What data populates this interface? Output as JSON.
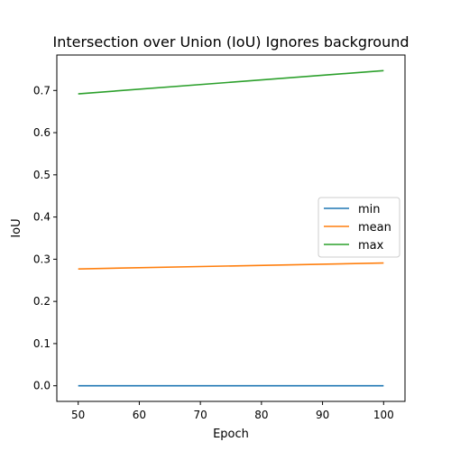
{
  "chart_data": {
    "type": "line",
    "title": "Intersection over Union (IoU) Ignores background",
    "xlabel": "Epoch",
    "ylabel": "IoU",
    "xlim": [
      46.5,
      103.5
    ],
    "ylim": [
      -0.037,
      0.784
    ],
    "xticks": [
      50,
      60,
      70,
      80,
      90,
      100
    ],
    "xtick_labels": [
      "50",
      "60",
      "70",
      "80",
      "90",
      "100"
    ],
    "yticks": [
      0.0,
      0.1,
      0.2,
      0.3,
      0.4,
      0.5,
      0.6,
      0.7
    ],
    "ytick_labels": [
      "0.0",
      "0.1",
      "0.2",
      "0.3",
      "0.4",
      "0.5",
      "0.6",
      "0.7"
    ],
    "x": [
      50,
      100
    ],
    "series": [
      {
        "name": "min",
        "color": "#1f77b4",
        "values": [
          0.0,
          0.0
        ]
      },
      {
        "name": "mean",
        "color": "#ff7f0e",
        "values": [
          0.277,
          0.291
        ]
      },
      {
        "name": "max",
        "color": "#2ca02c",
        "values": [
          0.692,
          0.747
        ]
      }
    ],
    "grid": false,
    "legend_position": "center-right"
  }
}
